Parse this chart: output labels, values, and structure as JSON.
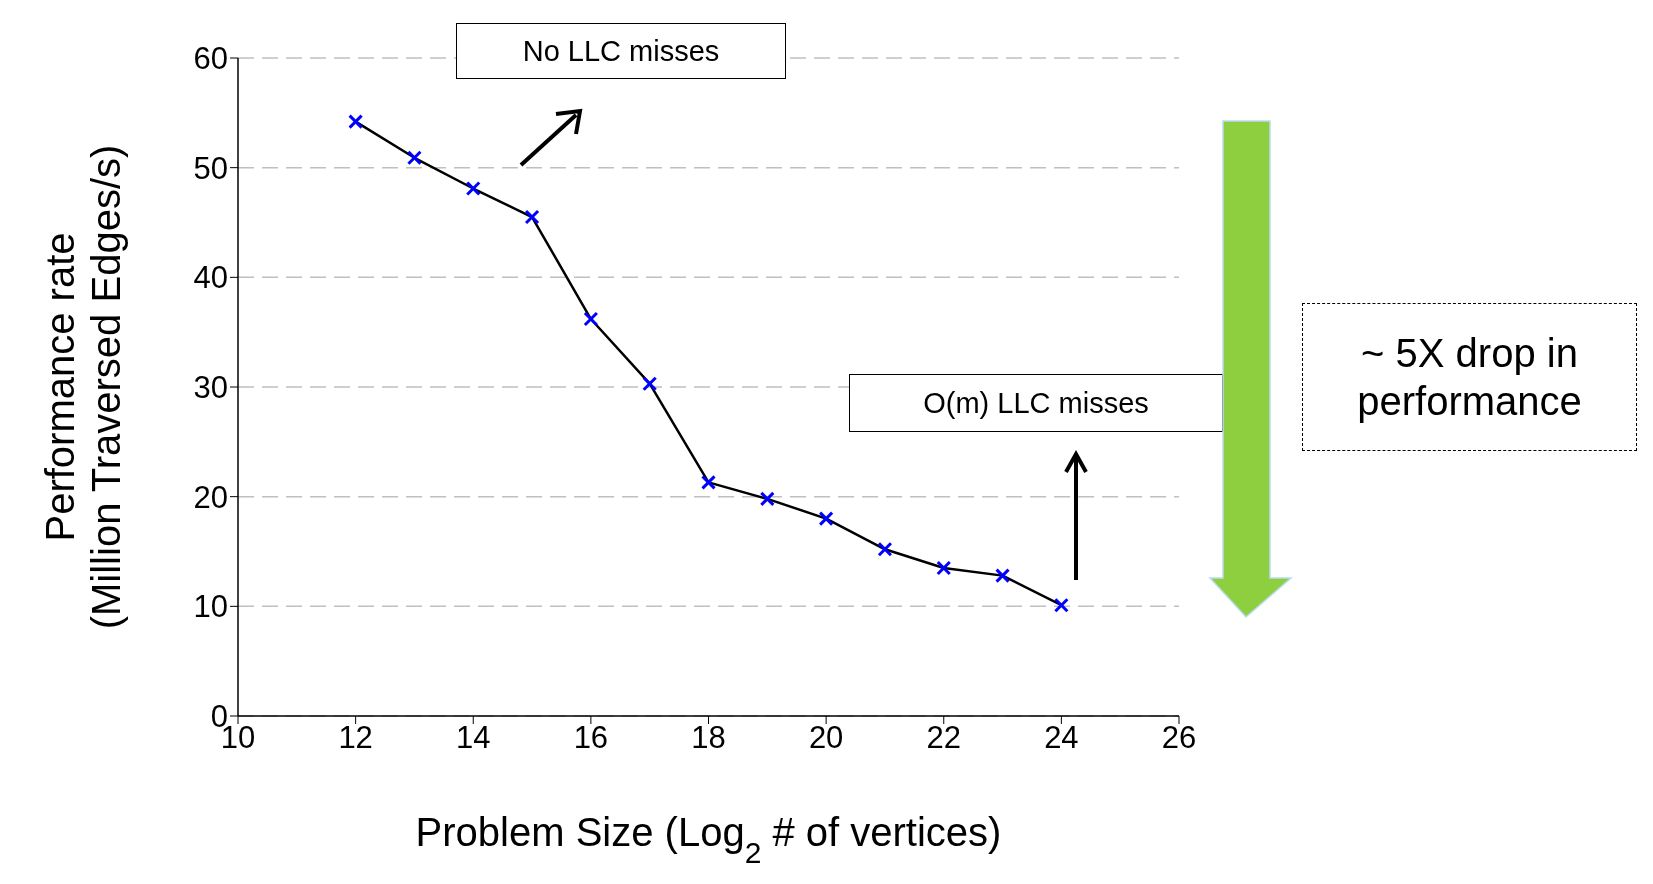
{
  "chart_data": {
    "type": "line",
    "xlabel": "Problem Size (Log$_{2}$ # of vertices)",
    "ylabel": "Performance rate\n(Million Traversed Edges/s)",
    "x": [
      12,
      13,
      14,
      15,
      16,
      17,
      18,
      19,
      20,
      21,
      22,
      23,
      24
    ],
    "series": [
      {
        "color": "#000000",
        "colors": [
          "#0000ff",
          "#0000ff",
          "#0000ff",
          "#0000ff",
          "#0000ff",
          "#0000ff",
          "#0000ff",
          "#0000ff",
          "#0000ff",
          "#0000ff",
          "#0000ff",
          "#0000ff",
          "#0000ff"
        ],
        "values": [
          54.2,
          50.9,
          48.1,
          45.5,
          36.2,
          30.3,
          21.3,
          19.8,
          18.0,
          15.2,
          13.5,
          12.8,
          10.1
        ]
      }
    ],
    "xlim": [
      10,
      26
    ],
    "xticks": [
      10,
      12,
      14,
      16,
      18,
      20,
      22,
      24,
      26
    ],
    "ylim": [
      0,
      60
    ],
    "yticks": [
      0,
      10,
      20,
      30,
      40,
      50,
      60
    ],
    "grid": "y",
    "marker": "cross",
    "line_style": "solid",
    "annotations": [
      "No LLC misses",
      "O(m) LLC misses",
      "~ 5X drop in performance"
    ]
  }
}
